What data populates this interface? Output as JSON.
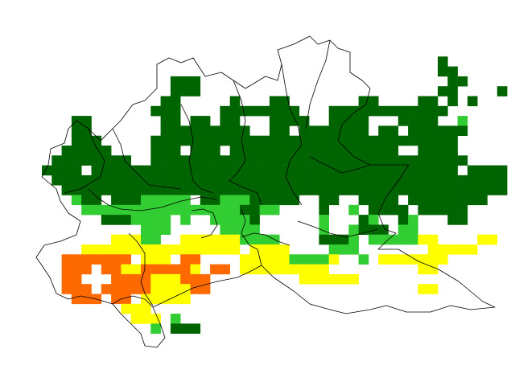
{
  "map": {
    "colors": {
      "dark_green": "#006400",
      "light_green": "#32cd32",
      "yellow": "#ffff00",
      "orange": "#ff6a00",
      "boundary": "#000000",
      "background": "#ffffff"
    },
    "legend": []
  }
}
